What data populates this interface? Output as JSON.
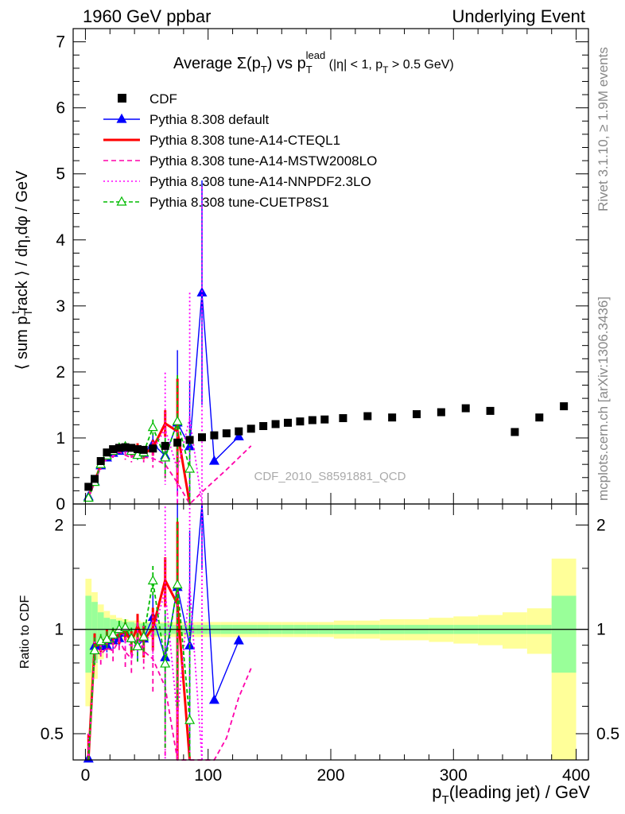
{
  "header": {
    "left": "1960 GeV ppbar",
    "right": "Underlying Event"
  },
  "side_text": {
    "rivet": "Rivet 3.1.10, ≥ 1.9M events",
    "source": "mcplots.cern.ch [arXiv:1306.3436]"
  },
  "chart_data": {
    "type": "line",
    "title_parts": {
      "prefix": "Average ",
      "sigma": "Σ(p",
      "sigma_sub": "T",
      "mid": ") vs p",
      "lead_sub": "T",
      "lead_sup": "lead",
      "suffix": " (|η| < 1, p",
      "suffix_sub": "T",
      "tail": " > 0.5 GeV)"
    },
    "analysis_tag": "CDF_2010_S8591881_QCD",
    "ylabel": "⟨ sum p_T^track ⟩ / dη,dφ / GeV",
    "ylabel_parts": {
      "a": "⟨ sum p",
      "sub": "T",
      "sup": "t",
      "b": "rack ⟩ / dη,dφ / GeV"
    },
    "ratio_ylabel": "Ratio to CDF",
    "xlabel_parts": {
      "a": "p",
      "sub": "T",
      "b": "(leading jet) / GeV"
    },
    "xlim": [
      -10,
      410
    ],
    "ylim": [
      0,
      7.2
    ],
    "ratio_ylim": [
      0.42,
      2.3
    ],
    "x_ticks": [
      "0",
      "100",
      "200",
      "300",
      "400"
    ],
    "y_ticks": [
      "0",
      "1",
      "2",
      "3",
      "4",
      "5",
      "6",
      "7"
    ],
    "ratio_ticks": [
      "0.5",
      "1",
      "2"
    ],
    "legend": [
      {
        "label": "CDF",
        "color": "#000000",
        "style": "marker-square"
      },
      {
        "label": "Pythia 8.308 default",
        "color": "#0000ff",
        "style": "solid-triangle"
      },
      {
        "label": "Pythia 8.308 tune-A14-CTEQL1",
        "color": "#ff0000",
        "style": "solid-thick"
      },
      {
        "label": "Pythia 8.308 tune-A14-MSTW2008LO",
        "color": "#ff00aa",
        "style": "dashed"
      },
      {
        "label": "Pythia 8.308 tune-A14-NNPDF2.3LO",
        "color": "#ff00ff",
        "style": "dotted"
      },
      {
        "label": "Pythia 8.308 tune-CUETP8S1",
        "color": "#00bb00",
        "style": "dashed-opentriangle"
      }
    ],
    "data": {
      "x": [
        2.5,
        7.5,
        12.5,
        17.5,
        22.5,
        27.5,
        32.5,
        37.5,
        42.5,
        47.5,
        55,
        65,
        75,
        85,
        95,
        105,
        115,
        125,
        135,
        145,
        155,
        165,
        175,
        185,
        195,
        210,
        230,
        250,
        270,
        290,
        310,
        330,
        350,
        370,
        390
      ],
      "y": [
        0.26,
        0.38,
        0.65,
        0.78,
        0.83,
        0.85,
        0.86,
        0.85,
        0.83,
        0.82,
        0.84,
        0.88,
        0.93,
        0.97,
        1.01,
        1.04,
        1.07,
        1.1,
        1.14,
        1.18,
        1.21,
        1.23,
        1.25,
        1.27,
        1.28,
        1.3,
        1.33,
        1.31,
        1.36,
        1.39,
        1.45,
        1.41,
        1.09,
        1.31,
        1.48
      ],
      "stat_band": [
        0.25,
        0.2,
        0.12,
        0.08,
        0.07,
        0.06,
        0.05,
        0.05,
        0.04,
        0.04,
        0.04,
        0.04,
        0.03,
        0.03,
        0.03,
        0.03,
        0.03,
        0.03,
        0.03,
        0.03,
        0.03,
        0.03,
        0.03,
        0.03,
        0.03,
        0.03,
        0.03,
        0.03,
        0.03,
        0.03,
        0.03,
        0.03,
        0.03,
        0.03,
        0.25
      ],
      "tot_band": [
        0.4,
        0.28,
        0.18,
        0.13,
        0.1,
        0.08,
        0.07,
        0.06,
        0.06,
        0.05,
        0.05,
        0.05,
        0.05,
        0.05,
        0.05,
        0.05,
        0.05,
        0.05,
        0.05,
        0.05,
        0.05,
        0.05,
        0.05,
        0.05,
        0.05,
        0.06,
        0.06,
        0.07,
        0.07,
        0.08,
        0.09,
        0.1,
        0.12,
        0.15,
        0.6
      ]
    },
    "series": [
      {
        "name": "Pythia 8.308 default",
        "color": "#0000ff",
        "x": [
          2.5,
          7.5,
          12.5,
          17.5,
          22.5,
          27.5,
          32.5,
          37.5,
          42.5,
          47.5,
          55,
          65,
          75,
          85,
          95,
          105,
          125
        ],
        "y": [
          0.11,
          0.34,
          0.58,
          0.7,
          0.77,
          0.8,
          0.84,
          0.8,
          0.74,
          0.77,
          0.91,
          0.73,
          1.23,
          0.87,
          3.2,
          0.65,
          1.02
        ],
        "err": [
          0.02,
          0.03,
          0.03,
          0.03,
          0.04,
          0.05,
          0.05,
          0.06,
          0.07,
          0.08,
          0.15,
          0.25,
          1.1,
          1.0,
          1.7,
          0,
          0
        ]
      },
      {
        "name": "Pythia 8.308 tune-A14-CTEQL1",
        "color": "#ff0000",
        "x": [
          2.5,
          7.5,
          12.5,
          17.5,
          22.5,
          27.5,
          32.5,
          37.5,
          42.5,
          47.5,
          55,
          65,
          75,
          85
        ],
        "y": [
          0.11,
          0.34,
          0.59,
          0.74,
          0.79,
          0.82,
          0.85,
          0.78,
          0.85,
          0.76,
          0.85,
          1.22,
          1.1,
          0.0
        ],
        "err": [
          0.02,
          0.03,
          0.03,
          0.04,
          0.04,
          0.05,
          0.05,
          0.06,
          0.07,
          0.08,
          0.12,
          0.2,
          0.8,
          0
        ]
      },
      {
        "name": "Pythia 8.308 tune-A14-MSTW2008LO",
        "color": "#ff00aa",
        "x": [
          2.5,
          7.5,
          12.5,
          17.5,
          22.5,
          27.5,
          32.5,
          37.5,
          42.5,
          47.5,
          55,
          65,
          75,
          85,
          95,
          105,
          115,
          125,
          135
        ],
        "y": [
          0.1,
          0.33,
          0.55,
          0.69,
          0.72,
          0.79,
          0.74,
          0.7,
          0.79,
          0.71,
          0.69,
          0.6,
          0.32,
          0.0,
          0.18,
          0.35,
          0.52,
          0.7,
          0.88
        ],
        "err": [
          0.02,
          0.03,
          0.04,
          0.05,
          0.05,
          0.06,
          0.07,
          0.07,
          0.08,
          0.08,
          0.14,
          0.22,
          0.6,
          0,
          0,
          0,
          0,
          0,
          0
        ]
      },
      {
        "name": "Pythia 8.308 tune-A14-NNPDF2.3LO",
        "color": "#ff00ff",
        "x": [
          2.5,
          7.5,
          12.5,
          17.5,
          22.5,
          27.5,
          32.5,
          37.5,
          42.5,
          47.5,
          55,
          65,
          75,
          85,
          95
        ],
        "y": [
          0.11,
          0.33,
          0.57,
          0.73,
          0.76,
          0.84,
          0.82,
          0.75,
          0.76,
          0.76,
          0.81,
          1.14,
          0.52,
          1.3,
          0.0
        ],
        "err": [
          0.02,
          0.03,
          0.03,
          0.04,
          0.05,
          0.05,
          0.06,
          0.06,
          0.07,
          0.08,
          0.13,
          0.85,
          0.7,
          1.9,
          4.8
        ]
      },
      {
        "name": "Pythia 8.308 tune-CUETP8S1",
        "color": "#00bb00",
        "x": [
          2.5,
          7.5,
          12.5,
          17.5,
          22.5,
          27.5,
          32.5,
          37.5,
          42.5,
          47.5,
          55,
          65,
          75,
          85
        ],
        "y": [
          0.09,
          0.33,
          0.6,
          0.73,
          0.8,
          0.85,
          0.87,
          0.8,
          0.74,
          0.78,
          1.16,
          0.7,
          1.25,
          0.53
        ],
        "err": [
          0.02,
          0.03,
          0.03,
          0.04,
          0.04,
          0.05,
          0.05,
          0.06,
          0.07,
          0.08,
          0.12,
          0.3,
          0.7,
          0.6
        ]
      }
    ]
  }
}
